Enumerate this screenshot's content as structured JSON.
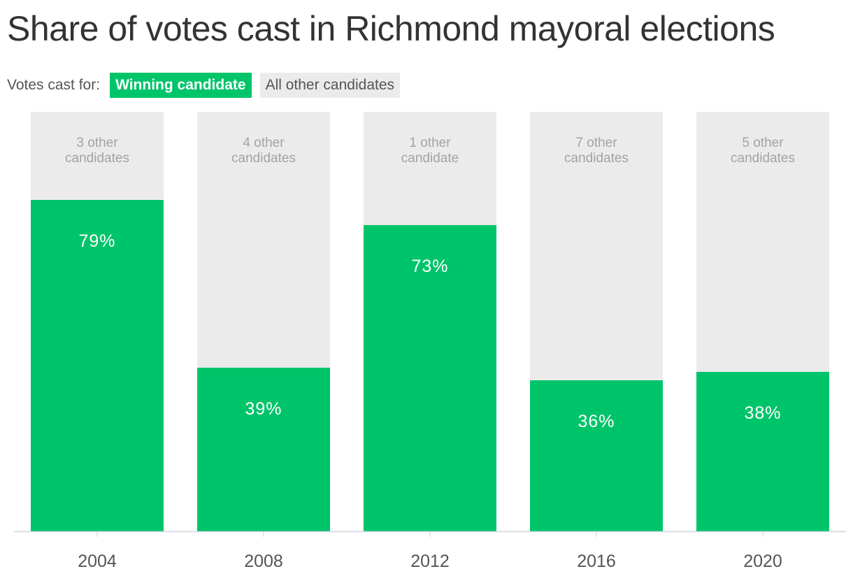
{
  "chart_data": {
    "type": "bar",
    "stacked": true,
    "title": "Share of votes cast in Richmond mayoral elections",
    "legend_label": "Votes cast for:",
    "categories": [
      "2004",
      "2008",
      "2012",
      "2016",
      "2020"
    ],
    "series": [
      {
        "name": "Winning candidate",
        "color": "#00c46a",
        "values": [
          79,
          39,
          73,
          36,
          38
        ],
        "labels": [
          "79%",
          "39%",
          "73%",
          "36%",
          "38%"
        ]
      },
      {
        "name": "All other candidates",
        "color": "#ebebeb",
        "values": [
          21,
          61,
          27,
          64,
          62
        ],
        "labels": [
          [
            "3 other",
            "candidates"
          ],
          [
            "4 other",
            "candidates"
          ],
          [
            "1 other",
            "candidate"
          ],
          [
            "7 other",
            "candidates"
          ],
          [
            "5 other",
            "candidates"
          ]
        ]
      }
    ],
    "ylim": [
      0,
      100
    ],
    "legend_position": "top-left",
    "grid": false
  }
}
